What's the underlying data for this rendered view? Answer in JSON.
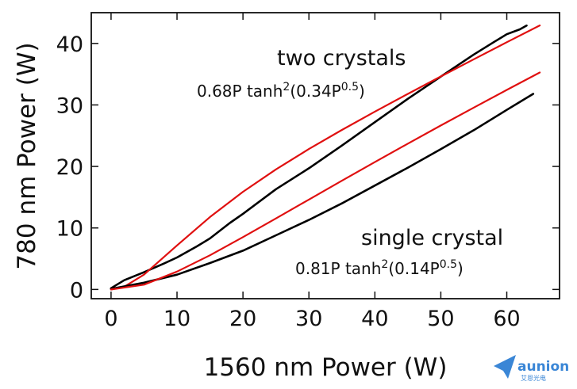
{
  "chart_data": {
    "type": "line",
    "xlabel": "1560 nm Power (W)",
    "ylabel": "780 nm Power (W)",
    "xlim": [
      -3,
      68
    ],
    "ylim": [
      -1.5,
      45
    ],
    "xticks": [
      0,
      10,
      20,
      30,
      40,
      50,
      60
    ],
    "yticks": [
      0,
      10,
      20,
      30,
      40
    ],
    "grid": false,
    "annotations": {
      "two_title": "two crystals",
      "two_formula_main": "0.68P tanh",
      "two_formula_sq": "2",
      "two_formula_arg": "(0.34P",
      "two_formula_exp": "0.5",
      "two_formula_close": ")",
      "single_title": "single crystal",
      "single_formula_main": "0.81P tanh",
      "single_formula_sq": "2",
      "single_formula_arg": "(0.14P",
      "single_formula_exp": "0.5",
      "single_formula_close": ")"
    },
    "series": [
      {
        "color": "#000000",
        "kind": "measured",
        "x": [
          0,
          2,
          5,
          8,
          10,
          13,
          15,
          18,
          20,
          25,
          30,
          35,
          40,
          45,
          50,
          55,
          58,
          60,
          62,
          63
        ],
        "y": [
          0.2,
          1.5,
          2.8,
          4.2,
          5.2,
          7.0,
          8.3,
          10.8,
          12.3,
          16.3,
          19.7,
          23.4,
          27.2,
          31.0,
          34.6,
          38.2,
          40.2,
          41.5,
          42.3,
          42.9
        ]
      },
      {
        "color": "#e01010",
        "kind": "fit",
        "x": [
          0,
          2,
          5,
          10,
          15,
          20,
          25,
          30,
          35,
          40,
          45,
          50,
          55,
          60,
          65
        ],
        "y": [
          0,
          0.44,
          2.41,
          7.16,
          11.78,
          15.88,
          19.52,
          22.83,
          25.93,
          28.91,
          31.8,
          34.63,
          37.43,
          40.19,
          42.92
        ]
      },
      {
        "color": "#000000",
        "kind": "measured",
        "x": [
          0,
          5,
          10,
          15,
          20,
          25,
          30,
          35,
          40,
          45,
          50,
          55,
          60,
          62,
          64
        ],
        "y": [
          0.1,
          1.1,
          2.4,
          4.3,
          6.3,
          8.8,
          11.3,
          14.0,
          16.9,
          19.8,
          22.8,
          25.9,
          29.2,
          30.5,
          31.8
        ]
      },
      {
        "color": "#e01010",
        "kind": "fit",
        "x": [
          0,
          5,
          10,
          15,
          20,
          25,
          30,
          35,
          40,
          45,
          50,
          55,
          60,
          65
        ],
        "y": [
          0,
          0.78,
          2.9,
          5.56,
          8.51,
          11.55,
          14.62,
          17.68,
          20.71,
          23.71,
          26.66,
          29.57,
          32.44,
          35.27
        ]
      }
    ]
  },
  "watermark": {
    "logo_name": "aunion",
    "logo_sub": "艾恩光电",
    "icon": "paper-plane-icon"
  }
}
